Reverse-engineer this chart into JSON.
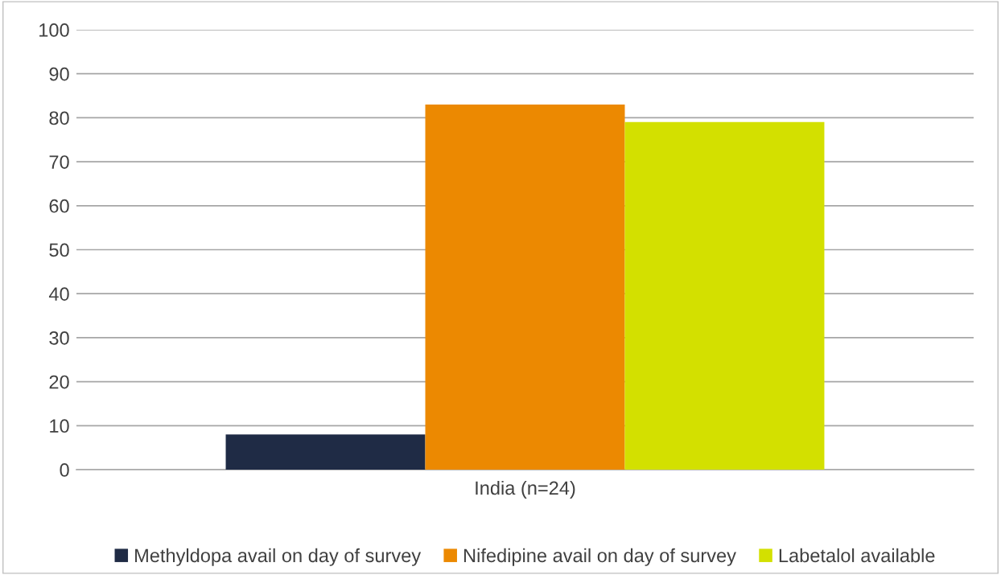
{
  "chart_data": {
    "type": "bar",
    "categories": [
      "India (n=24)"
    ],
    "series": [
      {
        "name": "Methyldopa avail on day of survey",
        "color": "#1f2b45",
        "values": [
          8
        ]
      },
      {
        "name": "Nifedipine avail on day of survey",
        "color": "#ec8901",
        "values": [
          83
        ]
      },
      {
        "name": "Labetalol available",
        "color": "#d3e000",
        "values": [
          79
        ]
      }
    ],
    "ylim": [
      0,
      100
    ],
    "yticks": [
      0,
      10,
      20,
      30,
      40,
      50,
      60,
      70,
      80,
      90,
      100
    ],
    "grid": "y",
    "legend": "bottom"
  }
}
